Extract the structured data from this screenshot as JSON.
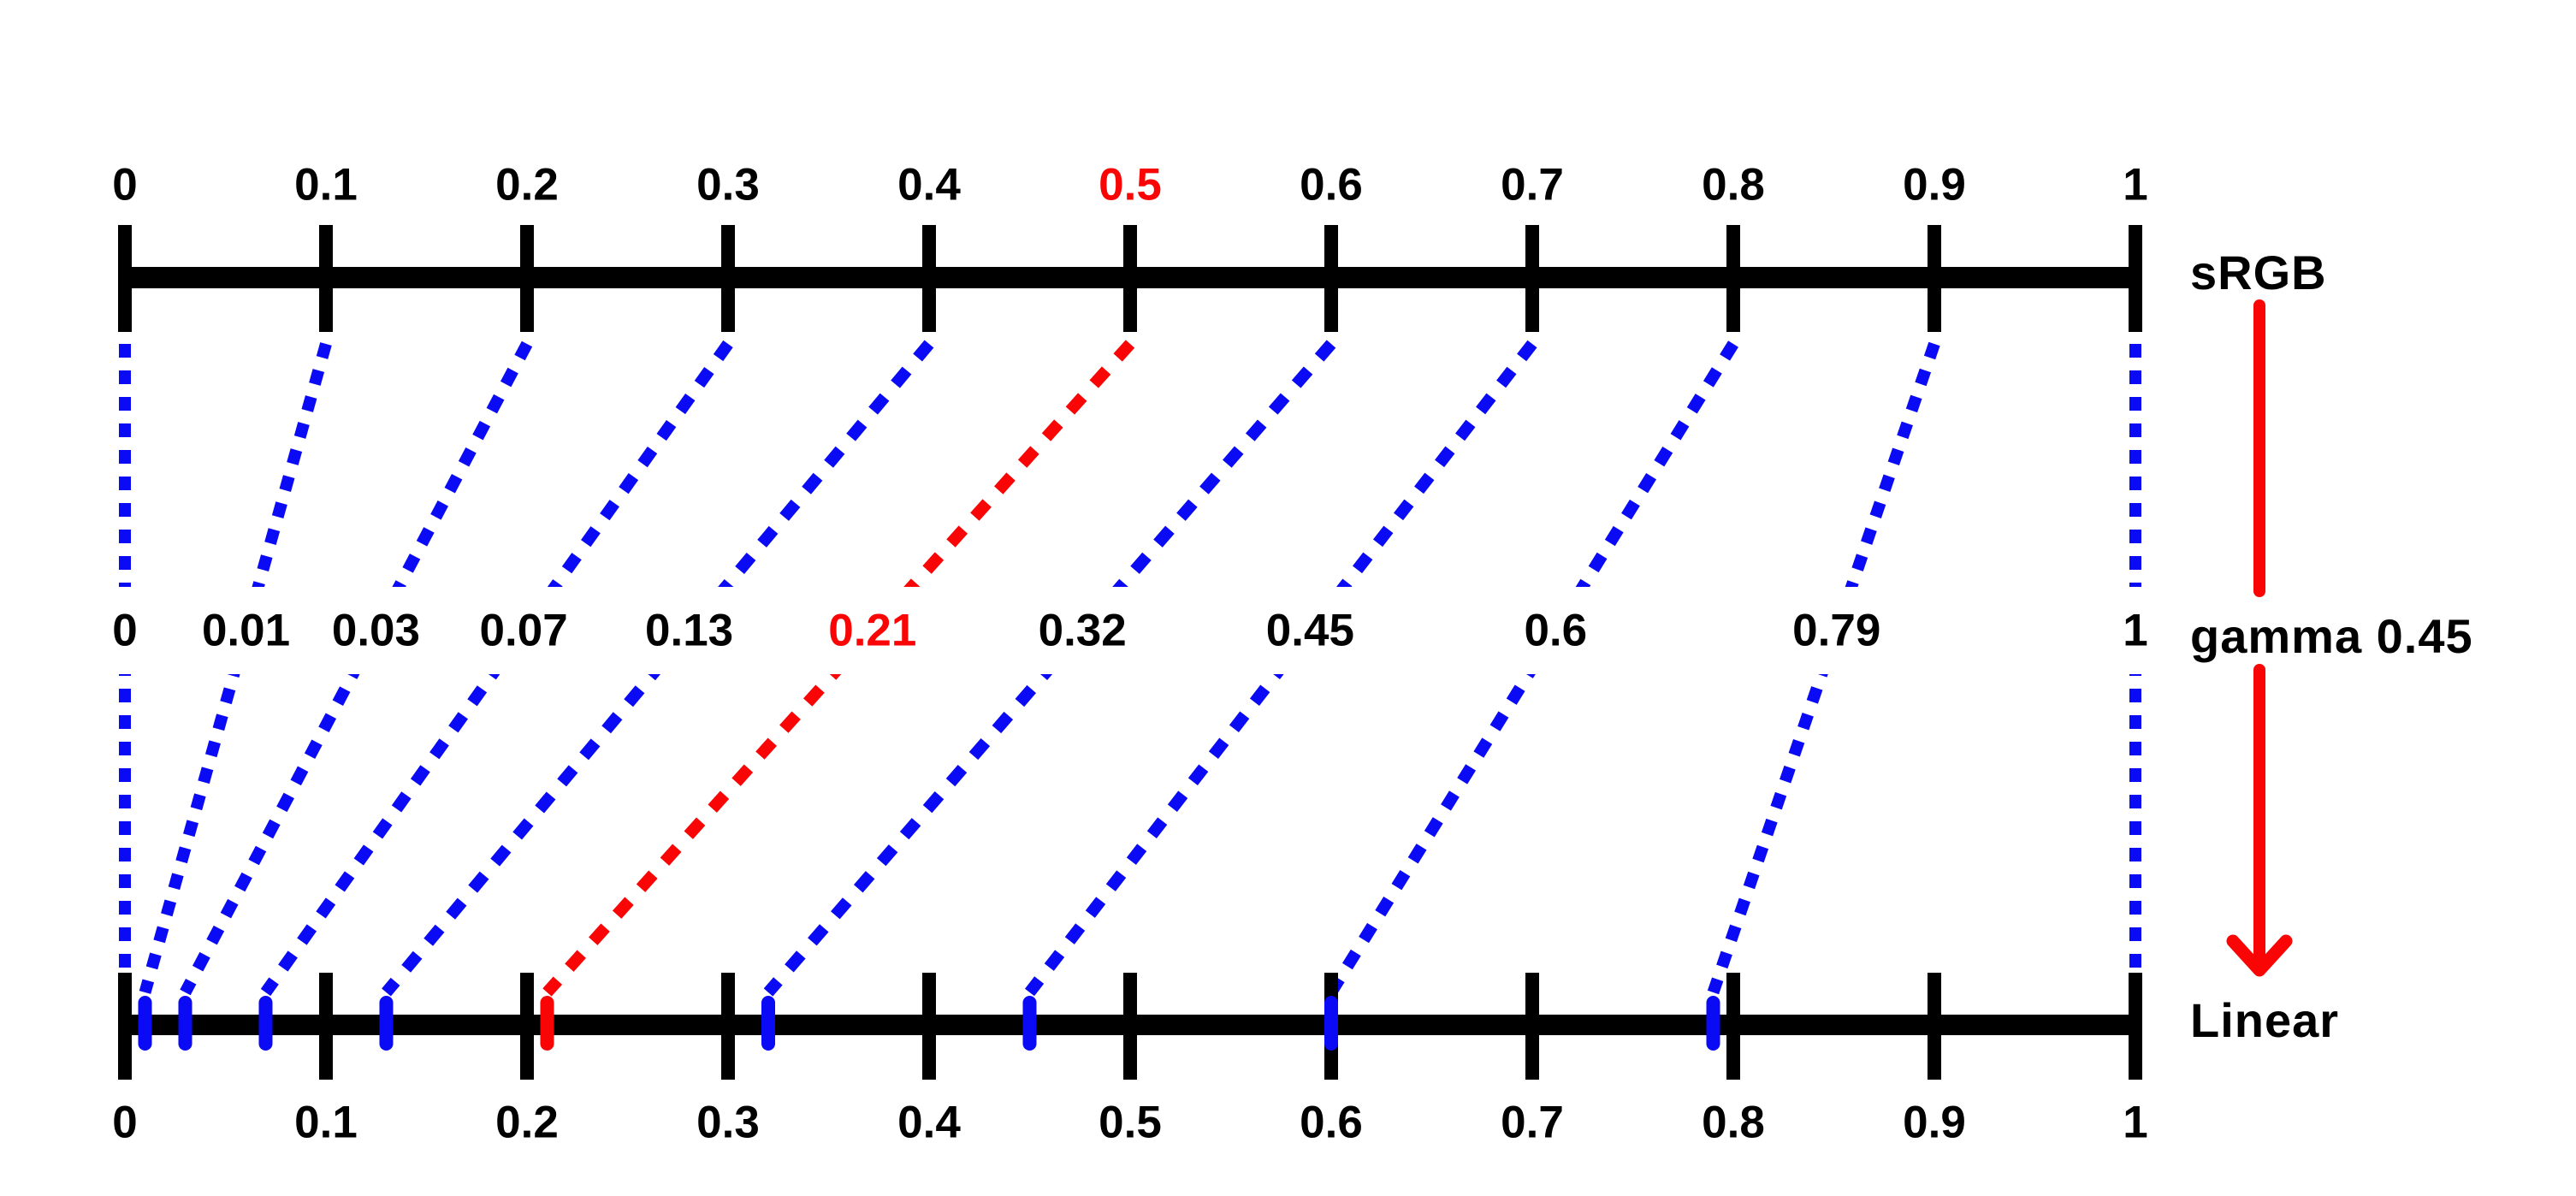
{
  "titles": {
    "top_axis": "sRGB",
    "transform": "gamma 0.45",
    "bottom_axis": "Linear"
  },
  "colors": {
    "axis": "#000000",
    "connector": "#0a0af5",
    "highlight": "#fa0505",
    "background": "#ffffff"
  },
  "top_axis": {
    "ticks": [
      {
        "label": "0",
        "value": 0,
        "highlight": false
      },
      {
        "label": "0.1",
        "value": 0.1,
        "highlight": false
      },
      {
        "label": "0.2",
        "value": 0.2,
        "highlight": false
      },
      {
        "label": "0.3",
        "value": 0.3,
        "highlight": false
      },
      {
        "label": "0.4",
        "value": 0.4,
        "highlight": false
      },
      {
        "label": "0.5",
        "value": 0.5,
        "highlight": true
      },
      {
        "label": "0.6",
        "value": 0.6,
        "highlight": false
      },
      {
        "label": "0.7",
        "value": 0.7,
        "highlight": false
      },
      {
        "label": "0.8",
        "value": 0.8,
        "highlight": false
      },
      {
        "label": "0.9",
        "value": 0.9,
        "highlight": false
      },
      {
        "label": "1",
        "value": 1,
        "highlight": false
      }
    ]
  },
  "bottom_axis": {
    "ticks": [
      {
        "label": "0",
        "value": 0
      },
      {
        "label": "0.1",
        "value": 0.1
      },
      {
        "label": "0.2",
        "value": 0.2
      },
      {
        "label": "0.3",
        "value": 0.3
      },
      {
        "label": "0.4",
        "value": 0.4
      },
      {
        "label": "0.5",
        "value": 0.5
      },
      {
        "label": "0.6",
        "value": 0.6
      },
      {
        "label": "0.7",
        "value": 0.7
      },
      {
        "label": "0.8",
        "value": 0.8
      },
      {
        "label": "0.9",
        "value": 0.9
      },
      {
        "label": "1",
        "value": 1
      }
    ]
  },
  "mappings": [
    {
      "srgb_value": 0,
      "linear_value": 0,
      "label": "0",
      "marker": false,
      "highlight": false
    },
    {
      "srgb_value": 0.1,
      "linear_value": 0.01,
      "label": "0.01",
      "marker": true,
      "highlight": false
    },
    {
      "srgb_value": 0.2,
      "linear_value": 0.03,
      "label": "0.03",
      "marker": true,
      "highlight": false
    },
    {
      "srgb_value": 0.3,
      "linear_value": 0.07,
      "label": "0.07",
      "marker": true,
      "highlight": false
    },
    {
      "srgb_value": 0.4,
      "linear_value": 0.13,
      "label": "0.13",
      "marker": true,
      "highlight": false
    },
    {
      "srgb_value": 0.5,
      "linear_value": 0.21,
      "label": "0.21",
      "marker": true,
      "highlight": true
    },
    {
      "srgb_value": 0.6,
      "linear_value": 0.32,
      "label": "0.32",
      "marker": true,
      "highlight": false
    },
    {
      "srgb_value": 0.7,
      "linear_value": 0.45,
      "label": "0.45",
      "marker": true,
      "highlight": false
    },
    {
      "srgb_value": 0.8,
      "linear_value": 0.6,
      "label": "0.6",
      "marker": true,
      "highlight": false
    },
    {
      "srgb_value": 0.9,
      "linear_value": 0.79,
      "label": "0.79",
      "marker": true,
      "highlight": false
    },
    {
      "srgb_value": 1,
      "linear_value": 1,
      "label": "1",
      "marker": false,
      "highlight": false
    }
  ]
}
